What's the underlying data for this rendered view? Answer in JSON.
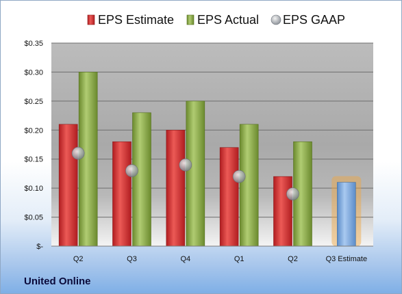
{
  "chart_data": {
    "type": "bar",
    "title": "",
    "xlabel": "",
    "ylabel": "",
    "categories": [
      "Q2",
      "Q3",
      "Q4",
      "Q1",
      "Q2",
      "Q3 Estimate"
    ],
    "series": [
      {
        "name": "EPS Estimate",
        "values": [
          0.21,
          0.18,
          0.2,
          0.17,
          0.12,
          null
        ],
        "color": "#c0282a"
      },
      {
        "name": "EPS Actual",
        "values": [
          0.3,
          0.23,
          0.25,
          0.21,
          0.18,
          null
        ],
        "color": "#7a9a3a"
      },
      {
        "name": "EPS GAAP",
        "values": [
          0.16,
          0.13,
          0.14,
          0.12,
          0.09,
          null
        ],
        "color": "#9aa0a8",
        "marker": "circle"
      }
    ],
    "estimate": {
      "category": "Q3 Estimate",
      "value": 0.11,
      "color": "#6f9fd8",
      "highlight": "#f0a640"
    },
    "ylim": [
      0,
      0.35
    ],
    "yticks": [
      0,
      0.05,
      0.1,
      0.15,
      0.2,
      0.25,
      0.3,
      0.35
    ],
    "ytick_labels": [
      "$-",
      "$0.05",
      "$0.10",
      "$0.15",
      "$0.20",
      "$0.25",
      "$0.30",
      "$0.35"
    ],
    "grid": true,
    "legend_position": "top"
  },
  "footer": {
    "company": "United Online"
  }
}
